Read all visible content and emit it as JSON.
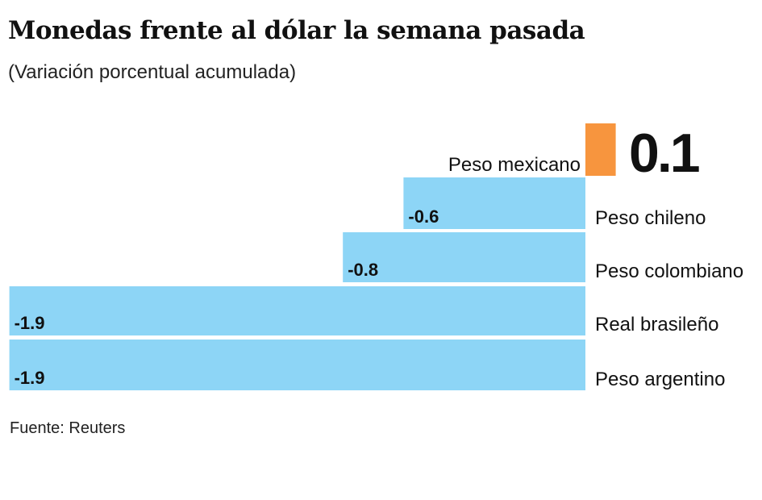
{
  "chart_data": {
    "type": "bar",
    "orientation": "horizontal",
    "title": "Monedas frente al dólar la semana pasada",
    "subtitle": "(Variación porcentual acumulada)",
    "source": "Fuente: Reuters",
    "categories": [
      "Peso mexicano",
      "Peso chileno",
      "Peso colombiano",
      "Real brasileño",
      "Peso argentino"
    ],
    "values": [
      0.1,
      -0.6,
      -0.8,
      -1.9,
      -1.9
    ],
    "value_labels": [
      "0.1",
      "-0.6",
      "-0.8",
      "-1.9",
      "-1.9"
    ],
    "colors": {
      "positive": "#f7953e",
      "negative": "#8dd5f6"
    },
    "grid": false,
    "legend": "none"
  }
}
